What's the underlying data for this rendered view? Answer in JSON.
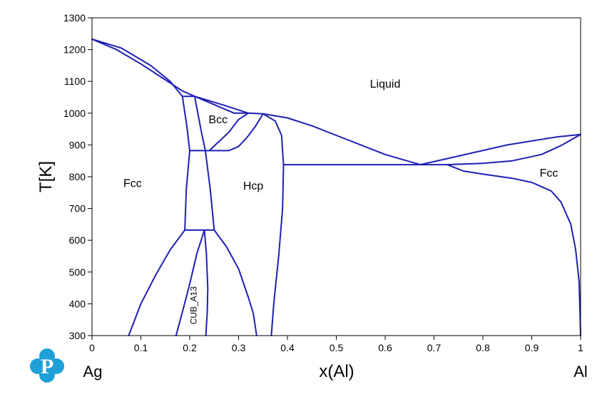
{
  "chart_data": {
    "type": "line",
    "xlabel": "x(Al)",
    "ylabel": "T[K]",
    "xlim": [
      0,
      1
    ],
    "ylim": [
      300,
      1300
    ],
    "xticks": [
      "0",
      "0.1",
      "0.2",
      "0.3",
      "0.4",
      "0.5",
      "0.6",
      "0.7",
      "0.8",
      "0.9",
      "1"
    ],
    "yticks": [
      "300",
      "400",
      "500",
      "600",
      "700",
      "800",
      "900",
      "1000",
      "1100",
      "1200",
      "1300"
    ],
    "left_component": "Ag",
    "right_component": "Al",
    "grid": false,
    "line_color": "#1f1fb4",
    "regions": [
      {
        "name": "Liquid",
        "x": 0.6,
        "y": 1080
      },
      {
        "name": "Bcc",
        "x": 0.258,
        "y": 968
      },
      {
        "name": "Fcc",
        "x": 0.083,
        "y": 768
      },
      {
        "name": "Hcp",
        "x": 0.33,
        "y": 760
      },
      {
        "name": "Fcc",
        "x": 0.935,
        "y": 800
      }
    ],
    "rotated_label": {
      "name": "CUB_A13",
      "x": 0.214,
      "y": 395
    },
    "series": [
      {
        "points": [
          [
            0,
            1233
          ],
          [
            0.05,
            1200
          ],
          [
            0.1,
            1155
          ],
          [
            0.15,
            1105
          ],
          [
            0.185,
            1070
          ],
          [
            0.21,
            1053
          ]
        ]
      },
      {
        "points": [
          [
            0,
            1233
          ],
          [
            0.06,
            1205
          ],
          [
            0.12,
            1150
          ],
          [
            0.16,
            1100
          ],
          [
            0.185,
            1053
          ]
        ]
      },
      {
        "points": [
          [
            0.21,
            1053
          ],
          [
            0.27,
            1025
          ],
          [
            0.32,
            1000
          ],
          [
            0.35,
            998
          ],
          [
            0.4,
            985
          ],
          [
            0.45,
            960
          ],
          [
            0.5,
            930
          ],
          [
            0.55,
            900
          ],
          [
            0.6,
            870
          ],
          [
            0.64,
            852
          ],
          [
            0.672,
            838
          ]
        ]
      },
      {
        "points": [
          [
            0.672,
            838
          ],
          [
            0.75,
            865
          ],
          [
            0.85,
            900
          ],
          [
            0.95,
            925
          ],
          [
            1,
            933
          ]
        ]
      },
      {
        "points": [
          [
            0.727,
            838
          ],
          [
            0.8,
            842
          ],
          [
            0.86,
            850
          ],
          [
            0.92,
            870
          ],
          [
            0.96,
            898
          ],
          [
            1,
            933
          ]
        ]
      },
      {
        "points": [
          [
            0.727,
            838
          ],
          [
            0.76,
            818
          ],
          [
            0.8,
            808
          ],
          [
            0.86,
            795
          ],
          [
            0.9,
            782
          ],
          [
            0.94,
            755
          ],
          [
            0.96,
            720
          ],
          [
            0.98,
            650
          ],
          [
            0.99,
            570
          ],
          [
            0.997,
            470
          ],
          [
            1,
            300
          ]
        ]
      },
      {
        "points": [
          [
            0.392,
            838
          ],
          [
            0.727,
            838
          ]
        ]
      },
      {
        "points": [
          [
            0.35,
            998
          ],
          [
            0.375,
            975
          ],
          [
            0.388,
            930
          ],
          [
            0.39,
            880
          ],
          [
            0.392,
            838
          ],
          [
            0.39,
            700
          ],
          [
            0.382,
            550
          ],
          [
            0.372,
            400
          ],
          [
            0.367,
            300
          ]
        ]
      },
      {
        "points": [
          [
            0.35,
            998
          ],
          [
            0.335,
            960
          ],
          [
            0.318,
            925
          ],
          [
            0.3,
            895
          ],
          [
            0.28,
            882
          ],
          [
            0.24,
            882
          ]
        ]
      },
      {
        "points": [
          [
            0.32,
            1000
          ],
          [
            0.3,
            980
          ],
          [
            0.28,
            940
          ],
          [
            0.24,
            882
          ]
        ]
      },
      {
        "points": [
          [
            0.291,
            1000
          ],
          [
            0.32,
            1000
          ]
        ]
      },
      {
        "points": [
          [
            0.21,
            1053
          ],
          [
            0.291,
            1000
          ]
        ]
      },
      {
        "points": [
          [
            0.185,
            1053
          ],
          [
            0.21,
            1053
          ]
        ]
      },
      {
        "points": [
          [
            0.21,
            1053
          ],
          [
            0.224,
            940
          ],
          [
            0.232,
            882
          ]
        ]
      },
      {
        "points": [
          [
            0.185,
            1053
          ],
          [
            0.194,
            960
          ],
          [
            0.2,
            882
          ]
        ]
      },
      {
        "points": [
          [
            0.2,
            882
          ],
          [
            0.24,
            882
          ]
        ]
      },
      {
        "points": [
          [
            0.2,
            882
          ],
          [
            0.193,
            760
          ],
          [
            0.19,
            632
          ]
        ]
      },
      {
        "points": [
          [
            0.232,
            882
          ],
          [
            0.242,
            760
          ],
          [
            0.25,
            632
          ]
        ]
      },
      {
        "points": [
          [
            0.19,
            632
          ],
          [
            0.25,
            632
          ]
        ]
      },
      {
        "points": [
          [
            0.19,
            632
          ],
          [
            0.16,
            570
          ],
          [
            0.13,
            490
          ],
          [
            0.1,
            400
          ],
          [
            0.075,
            300
          ]
        ]
      },
      {
        "points": [
          [
            0.25,
            632
          ],
          [
            0.275,
            580
          ],
          [
            0.3,
            510
          ],
          [
            0.32,
            420
          ],
          [
            0.33,
            370
          ],
          [
            0.337,
            300
          ]
        ]
      },
      {
        "points": [
          [
            0.23,
            632
          ],
          [
            0.215,
            560
          ],
          [
            0.198,
            450
          ],
          [
            0.186,
            380
          ],
          [
            0.172,
            300
          ]
        ]
      },
      {
        "points": [
          [
            0.23,
            632
          ],
          [
            0.234,
            560
          ],
          [
            0.237,
            450
          ],
          [
            0.236,
            380
          ],
          [
            0.233,
            300
          ]
        ]
      }
    ]
  },
  "logo_letter": "P"
}
